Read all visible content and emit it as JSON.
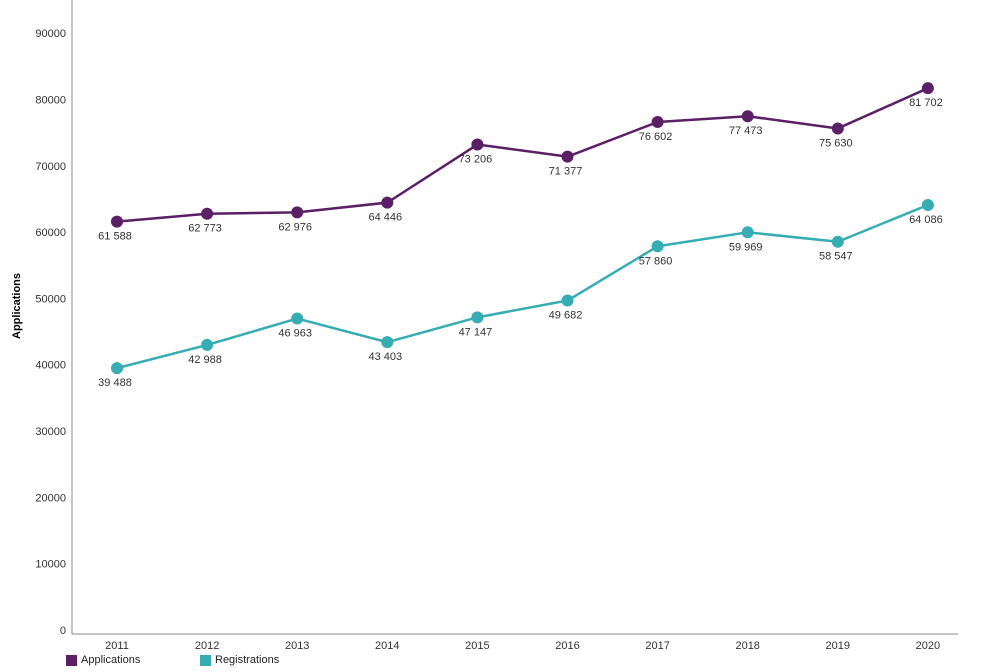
{
  "chart_data": {
    "type": "line",
    "title": "",
    "xlabel": "",
    "ylabel": "Applications",
    "categories": [
      "2011",
      "2012",
      "2013",
      "2014",
      "2015",
      "2016",
      "2017",
      "2018",
      "2019",
      "2020"
    ],
    "ylim": [
      0,
      95000
    ],
    "yticks": [
      0,
      10000,
      20000,
      30000,
      40000,
      50000,
      60000,
      70000,
      80000,
      90000
    ],
    "ytick_labels": [
      "0",
      "10000",
      "20000",
      "30000",
      "40000",
      "50000",
      "60000",
      "70000",
      "80000",
      "90000"
    ],
    "grid": false,
    "legend_position": "bottom-left",
    "series": [
      {
        "name": "Applications",
        "color": "#5b1f66",
        "values": [
          61588,
          62773,
          62976,
          64446,
          73206,
          71377,
          76602,
          77473,
          75630,
          81702
        ],
        "labels": [
          "61 588",
          "62 773",
          "62 976",
          "64 446",
          "73 206",
          "71 377",
          "76 602",
          "77 473",
          "75 630",
          "81 702"
        ]
      },
      {
        "name": "Registrations",
        "color": "#36adb2",
        "values": [
          39488,
          42988,
          46963,
          43403,
          47147,
          49682,
          57860,
          59969,
          58547,
          64086
        ],
        "labels": [
          "39 488",
          "42 988",
          "46 963",
          "43 403",
          "47 147",
          "49 682",
          "57 860",
          "59 969",
          "58 547",
          "64 086"
        ]
      }
    ]
  },
  "legend": {
    "items": [
      {
        "label": "Applications",
        "color": "#5b1f66"
      },
      {
        "label": "Registrations",
        "color": "#36adb2"
      }
    ]
  }
}
